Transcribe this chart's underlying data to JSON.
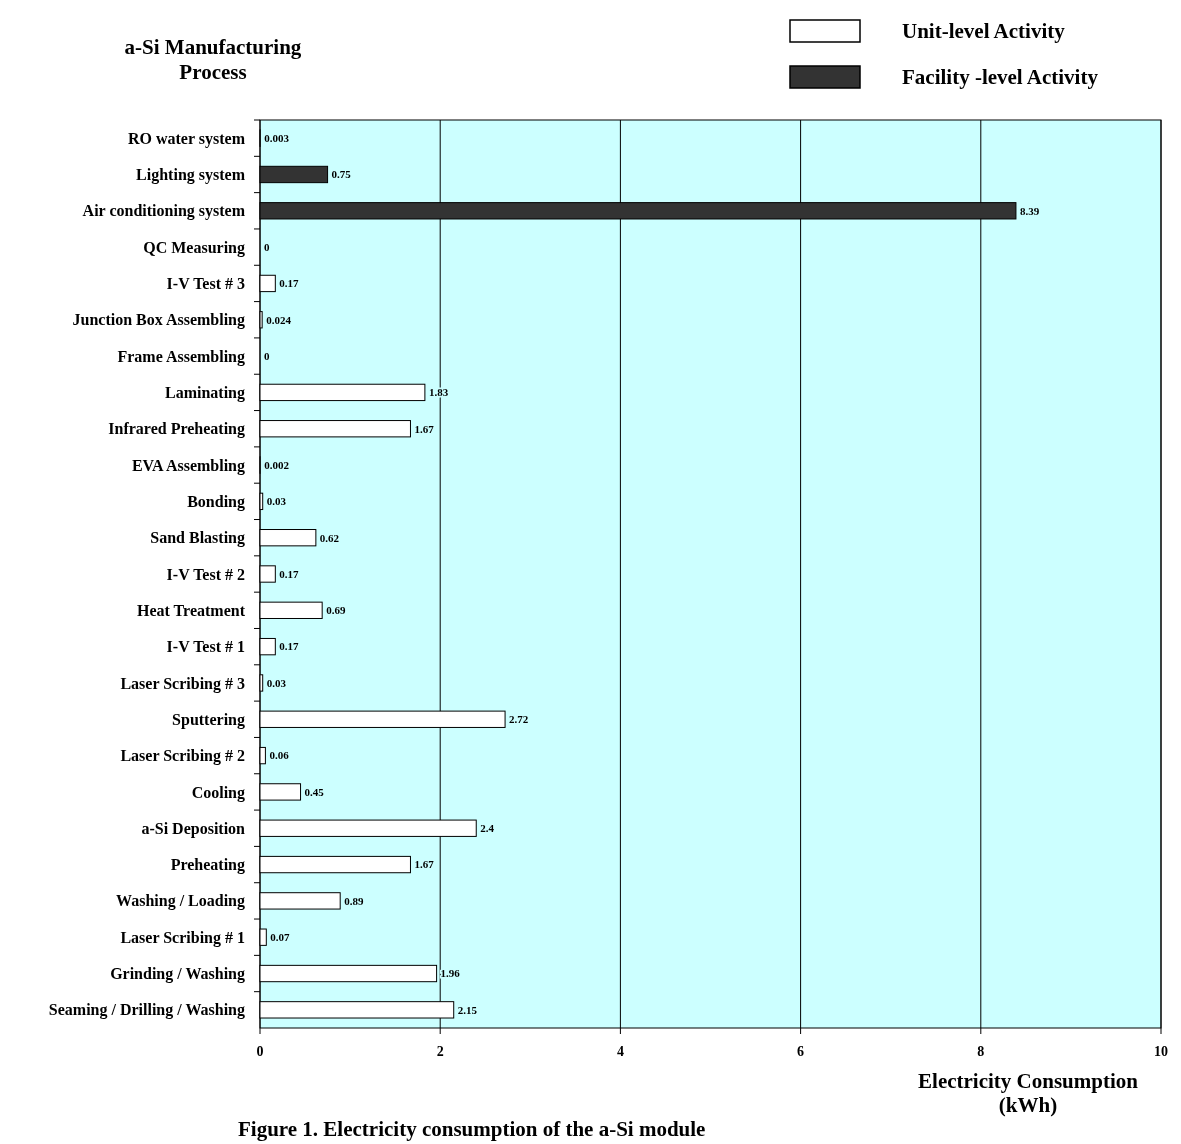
{
  "chart_data": {
    "type": "bar",
    "orientation": "horizontal",
    "ylabel": "a-Si Manufacturing Process",
    "xlabel": "Electricity Consumption (kWh)",
    "annotations": [
      "Figure 1.  Electricity consumption of the a-Si module"
    ],
    "categories": [
      "RO water system",
      "Lighting system",
      "Air conditioning system",
      "QC Measuring",
      "I-V Test # 3",
      "Junction Box Assembling",
      "Frame Assembling",
      "Laminating",
      "Infrared Preheating",
      "EVA Assembling",
      "Bonding",
      "Sand Blasting",
      "I-V Test # 2",
      "Heat Treatment",
      "I-V Test # 1",
      "Laser Scribing # 3",
      "Sputtering",
      "Laser Scribing # 2",
      "Cooling",
      "a-Si Deposition",
      "Preheating",
      "Washing / Loading",
      "Laser Scribing # 1",
      "Grinding / Washing",
      "Seaming / Drilling / Washing"
    ],
    "series": [
      {
        "name": "Unit-level Activity",
        "color": "#ffffff",
        "values": [
          0.003,
          null,
          null,
          0,
          0.17,
          0.024,
          0,
          1.83,
          1.67,
          0.002,
          0.03,
          0.62,
          0.17,
          0.69,
          0.17,
          0.03,
          2.72,
          0.06,
          0.45,
          2.4,
          1.67,
          0.89,
          0.07,
          1.96,
          2.15
        ]
      },
      {
        "name": "Facility -level Activity",
        "color": "#333333",
        "values": [
          null,
          0.75,
          8.39,
          null,
          null,
          null,
          null,
          null,
          null,
          null,
          null,
          null,
          null,
          null,
          null,
          null,
          null,
          null,
          null,
          null,
          null,
          null,
          null,
          null,
          null
        ]
      }
    ],
    "xlim": [
      0,
      10
    ],
    "xticks": [
      0,
      2,
      4,
      6,
      8,
      10
    ],
    "grid": "x",
    "legend": "top right",
    "data_labels": true
  }
}
